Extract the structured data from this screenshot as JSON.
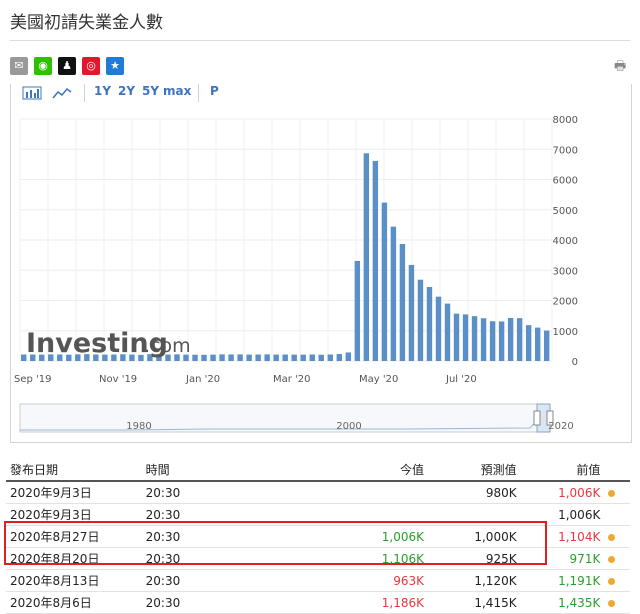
{
  "title": "美國初請失業金人數",
  "share_icons": [
    {
      "name": "mail-icon",
      "color": "#999999",
      "glyph": "✉"
    },
    {
      "name": "wechat-icon",
      "color": "#2dc100",
      "glyph": "◉"
    },
    {
      "name": "qq-icon",
      "color": "#111111",
      "glyph": "♟"
    },
    {
      "name": "weibo-icon",
      "color": "#e6162d",
      "glyph": "◎"
    },
    {
      "name": "favorite-icon",
      "color": "#1e7bd6",
      "glyph": "★"
    }
  ],
  "toolbar": {
    "ranges": [
      "1Y",
      "2Y",
      "5Y",
      "max"
    ],
    "p_label": "P"
  },
  "watermark": {
    "brand": "Investing",
    "suffix": ".com"
  },
  "chart_data": {
    "type": "bar",
    "values": [
      215,
      213,
      210,
      218,
      215,
      209,
      220,
      228,
      216,
      212,
      214,
      222,
      213,
      203,
      227,
      217,
      212,
      220,
      211,
      207,
      204,
      210,
      219,
      216,
      218,
      212,
      215,
      220,
      211,
      214,
      211,
      209,
      215,
      206,
      216,
      230,
      282,
      3307,
      6867,
      6615,
      5237,
      4442,
      3867,
      3176,
      2687,
      2446,
      2126,
      1897,
      1566,
      1540,
      1482,
      1413,
      1314,
      1307,
      1422,
      1416,
      1186,
      1104,
      1006
    ],
    "x_tick_labels": [
      "Sep '19",
      "Nov '19",
      "Jan '20",
      "Mar '20",
      "May '20",
      "Jul '20"
    ],
    "y_tick_labels": [
      "0",
      "1000",
      "2000",
      "3000",
      "4000",
      "5000",
      "6000",
      "7000",
      "8000"
    ],
    "ylim": [
      0,
      8000
    ],
    "color": "#5b8fc7",
    "navigator_labels": [
      "1980",
      "2000",
      "2020"
    ]
  },
  "table": {
    "headers": [
      "發布日期",
      "時間",
      "今值",
      "預測值",
      "前值"
    ],
    "rows": [
      {
        "date": "2020年9月3日",
        "time": "20:30",
        "actual": "",
        "forecast": "980K",
        "previous": "1,006K",
        "actual_class": "",
        "prev_class": "down",
        "dot": "#f0a830"
      },
      {
        "date": "2020年9月3日",
        "time": "20:30",
        "actual": "",
        "forecast": "",
        "previous": "1,006K",
        "actual_class": "",
        "prev_class": "",
        "dot": ""
      },
      {
        "date": "2020年8月27日",
        "time": "20:30",
        "actual": "1,006K",
        "forecast": "1,000K",
        "previous": "1,104K",
        "actual_class": "up",
        "prev_class": "down",
        "dot": "#f0a830"
      },
      {
        "date": "2020年8月20日",
        "time": "20:30",
        "actual": "1,106K",
        "forecast": "925K",
        "previous": "971K",
        "actual_class": "up",
        "prev_class": "up",
        "dot": "#f0a830"
      },
      {
        "date": "2020年8月13日",
        "time": "20:30",
        "actual": "963K",
        "forecast": "1,120K",
        "previous": "1,191K",
        "actual_class": "down",
        "prev_class": "up",
        "dot": "#f0a830"
      },
      {
        "date": "2020年8月6日",
        "time": "20:30",
        "actual": "1,186K",
        "forecast": "1,415K",
        "previous": "1,435K",
        "actual_class": "down",
        "prev_class": "up",
        "dot": "#f0a830"
      }
    ]
  }
}
